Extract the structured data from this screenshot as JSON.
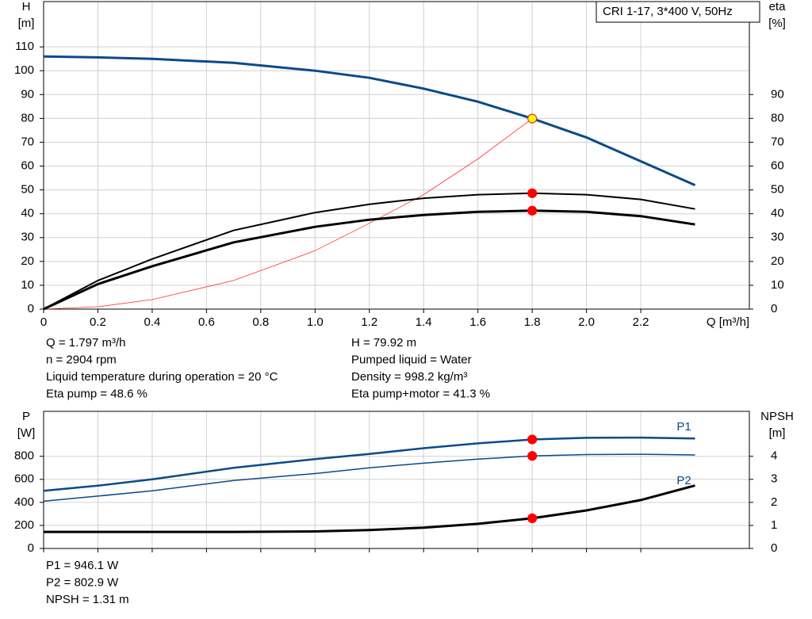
{
  "chart_data": [
    {
      "type": "line",
      "title": "CRI 1-17, 3*400 V, 50Hz",
      "ylabel": [
        "H",
        "[m]"
      ],
      "y2label": [
        "eta",
        "[%]"
      ],
      "xlabel": "Q [m³/h]",
      "xlim": [
        0,
        2.6
      ],
      "xticks": [
        0,
        0.2,
        0.4,
        0.6,
        0.8,
        {
          "value": 1,
          "label": "1.0"
        },
        1.2,
        1.4,
        1.6,
        1.8,
        {
          "value": 2,
          "label": "2.0"
        },
        2.2
      ],
      "ylim": [
        0,
        129
      ],
      "yticks": [
        0,
        10,
        20,
        30,
        40,
        50,
        60,
        70,
        80,
        90,
        100,
        110
      ],
      "y2lim": [
        0,
        129
      ],
      "y2ticks": [
        0,
        10,
        20,
        30,
        40,
        50,
        60,
        70,
        80,
        90
      ],
      "grid": true,
      "show_xtick_labels": true,
      "x": [
        0,
        0.2,
        0.4,
        0.7,
        1.0,
        1.2,
        1.4,
        1.6,
        1.8,
        2.0,
        2.2,
        2.4
      ],
      "series": [
        {
          "color": "#ff3030",
          "line_width": 0.8,
          "axis": "y",
          "values": [
            0,
            1,
            4,
            12,
            24.5,
            36,
            48,
            63,
            79.92,
            null,
            null,
            null
          ]
        },
        {
          "color": "#0b4a8a",
          "line_width": 3,
          "axis": "y",
          "values": [
            106,
            105.6,
            105,
            103.3,
            100,
            97,
            92.5,
            87,
            79.92,
            72,
            62,
            52
          ]
        },
        {
          "color": "#000000",
          "line_width": 2,
          "axis": "y2",
          "values": [
            0,
            12,
            21,
            33,
            40.5,
            44,
            46.5,
            48,
            48.6,
            48,
            46,
            42
          ]
        },
        {
          "color": "#000000",
          "line_width": 3,
          "axis": "y2",
          "values": [
            0,
            10.5,
            18,
            28,
            34.5,
            37.5,
            39.5,
            40.8,
            41.3,
            40.8,
            39,
            35.5
          ]
        }
      ],
      "markers": [
        {
          "x": 1.8,
          "y": 79.92,
          "axis": "y",
          "color": "#ffff00"
        },
        {
          "x": 1.8,
          "y": 48.6,
          "axis": "y2",
          "color": "#ff0000"
        },
        {
          "x": 1.8,
          "y": 41.3,
          "axis": "y2",
          "color": "#ff0000"
        }
      ],
      "info": [
        [
          "Q = 1.797 m³/h",
          "n = 2904 rpm",
          "Liquid temperature during operation = 20 °C",
          "Eta pump = 48.6 %"
        ],
        [
          "H = 79.92 m",
          "Pumped liquid = Water",
          "Density = 998.2 kg/m³",
          "Eta pump+motor = 41.3 %"
        ]
      ]
    },
    {
      "type": "line",
      "ylabel": [
        "P",
        "[W]"
      ],
      "y2label": [
        "NPSH",
        "[m]"
      ],
      "xlim": [
        0,
        2.6
      ],
      "xticks": [
        0,
        0.2,
        0.4,
        0.6,
        0.8,
        1,
        1.2,
        1.4,
        1.6,
        1.8,
        2,
        2.2
      ],
      "ylim": [
        0,
        1190
      ],
      "yticks": [
        0,
        200,
        400,
        600,
        800
      ],
      "y2lim": [
        0,
        5.95
      ],
      "y2ticks": [
        0,
        1,
        2,
        3,
        4
      ],
      "grid": true,
      "show_xtick_labels": false,
      "x": [
        0,
        0.2,
        0.4,
        0.7,
        1.0,
        1.2,
        1.4,
        1.6,
        1.8,
        2.0,
        2.2,
        2.4
      ],
      "series": [
        {
          "name": "P1",
          "color": "#0b4a8a",
          "line_width": 2.5,
          "axis": "y",
          "values": [
            500,
            545,
            600,
            700,
            775,
            820,
            870,
            912,
            946.1,
            960,
            962,
            955
          ]
        },
        {
          "name": "P2",
          "color": "#0b4a8a",
          "line_width": 1.5,
          "axis": "y",
          "values": [
            410,
            455,
            500,
            590,
            650,
            700,
            740,
            775,
            802.9,
            815,
            818,
            812
          ]
        },
        {
          "color": "#000000",
          "line_width": 3,
          "axis": "y2",
          "values": [
            0.72,
            0.72,
            0.72,
            0.72,
            0.74,
            0.8,
            0.9,
            1.07,
            1.31,
            1.65,
            2.1,
            2.73
          ]
        }
      ],
      "markers": [
        {
          "x": 1.8,
          "y": 946.1,
          "axis": "y",
          "color": "#ff0000"
        },
        {
          "x": 1.8,
          "y": 802.9,
          "axis": "y",
          "color": "#ff0000"
        },
        {
          "x": 1.8,
          "y": 1.31,
          "axis": "y2",
          "color": "#ff0000"
        }
      ],
      "info": [
        [
          "P1 = 946.1 W",
          "P2 = 802.9 W",
          "NPSH = 1.31 m"
        ]
      ]
    }
  ]
}
